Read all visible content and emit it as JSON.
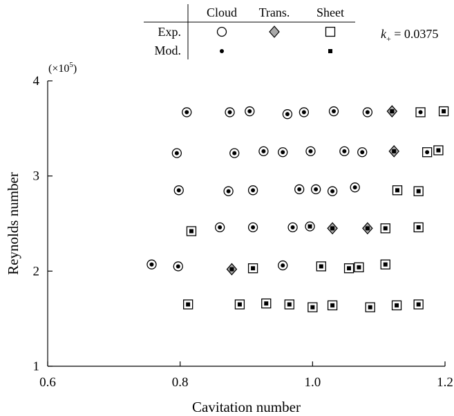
{
  "chart_data": {
    "type": "scatter",
    "xlabel": "Cavitation number",
    "ylabel": "Reynolds number",
    "xlim": [
      0.6,
      1.2
    ],
    "ylim": [
      1,
      4
    ],
    "y_multiplier": "(×10",
    "y_multiplier_exp": "5",
    "y_multiplier_close": ")",
    "xticks": [
      0.6,
      0.8,
      1.0,
      1.2
    ],
    "xtick_labels": [
      "0.6",
      "0.8",
      "1.0",
      "1.2"
    ],
    "yticks": [
      1,
      2,
      3,
      4
    ],
    "ytick_labels": [
      "1",
      "2",
      "3",
      "4"
    ],
    "grid": false,
    "annotation": {
      "k_symbol": "k",
      "k_subscript": "+",
      "k_value": " = 0.0375"
    },
    "legend": {
      "placement": "top",
      "columns": [
        "Cloud",
        "Trans.",
        "Sheet"
      ],
      "rows": [
        "Exp.",
        "Mod."
      ]
    },
    "regime_colors": {
      "transition_fill": "#a9a9a9",
      "marker_stroke": "#000000",
      "background": "#ffffff"
    },
    "series": [
      {
        "name": "Exp. Cloud",
        "marker": "circle-open",
        "x": [
          0.81,
          0.875,
          0.905,
          0.962,
          0.987,
          1.032,
          1.083,
          0.795,
          0.882,
          0.926,
          0.955,
          0.997,
          1.048,
          1.075,
          0.798,
          0.873,
          0.91,
          0.98,
          1.005,
          1.03,
          1.064,
          0.86,
          0.91,
          0.97,
          0.996,
          0.757,
          0.797,
          0.955
        ],
        "y": [
          3.67,
          3.67,
          3.68,
          3.65,
          3.67,
          3.68,
          3.67,
          3.24,
          3.24,
          3.26,
          3.25,
          3.26,
          3.26,
          3.25,
          2.85,
          2.84,
          2.85,
          2.86,
          2.86,
          2.84,
          2.88,
          2.46,
          2.46,
          2.46,
          2.47,
          2.07,
          2.05,
          2.06
        ]
      },
      {
        "name": "Exp. Trans.",
        "marker": "diamond-gray",
        "x": [
          1.12,
          1.123,
          1.03,
          1.083,
          0.878
        ],
        "y": [
          3.68,
          3.26,
          2.45,
          2.45,
          2.02
        ]
      },
      {
        "name": "Exp. Sheet",
        "marker": "square-open",
        "x": [
          0.817,
          1.163,
          1.198,
          1.173,
          1.19,
          1.128,
          1.16,
          1.11,
          1.16,
          0.91,
          1.013,
          1.055,
          1.07,
          1.11,
          0.812,
          0.89,
          0.93,
          0.965,
          1.0,
          1.03,
          1.087,
          1.127,
          1.16
        ],
        "y": [
          2.42,
          3.67,
          3.68,
          3.25,
          3.27,
          2.85,
          2.84,
          2.45,
          2.46,
          2.03,
          2.05,
          2.03,
          2.04,
          2.07,
          1.65,
          1.65,
          1.66,
          1.65,
          1.62,
          1.64,
          1.62,
          1.64,
          1.65
        ]
      },
      {
        "name": "Mod. Cloud",
        "marker": "dot",
        "x": [
          0.81,
          0.875,
          0.905,
          0.962,
          0.987,
          1.032,
          1.083,
          0.795,
          0.882,
          0.926,
          0.955,
          0.997,
          1.048,
          1.075,
          0.798,
          0.873,
          0.91,
          0.98,
          1.005,
          1.03,
          1.064,
          0.86,
          0.91,
          0.97,
          0.757,
          0.797,
          0.955,
          1.163,
          1.173
        ],
        "y": [
          3.67,
          3.67,
          3.68,
          3.65,
          3.67,
          3.68,
          3.67,
          3.24,
          3.24,
          3.26,
          3.25,
          3.26,
          3.26,
          3.25,
          2.85,
          2.84,
          2.85,
          2.86,
          2.86,
          2.84,
          2.88,
          2.46,
          2.46,
          2.46,
          2.07,
          2.05,
          2.06,
          3.67,
          3.25
        ]
      },
      {
        "name": "Mod. Sheet",
        "marker": "square-small",
        "x": [
          1.12,
          1.123,
          1.03,
          1.083,
          0.878,
          0.817,
          1.198,
          1.19,
          1.128,
          1.16,
          1.11,
          1.16,
          0.996,
          0.91,
          1.013,
          1.055,
          1.07,
          1.11,
          0.812,
          0.89,
          0.93,
          0.965,
          1.0,
          1.03,
          1.087,
          1.127,
          1.16
        ],
        "y": [
          3.68,
          3.26,
          2.45,
          2.45,
          2.02,
          2.42,
          3.68,
          3.27,
          2.85,
          2.84,
          2.45,
          2.46,
          2.47,
          2.03,
          2.05,
          2.03,
          2.04,
          2.07,
          1.65,
          1.65,
          1.66,
          1.65,
          1.62,
          1.64,
          1.62,
          1.64,
          1.65
        ]
      }
    ]
  }
}
